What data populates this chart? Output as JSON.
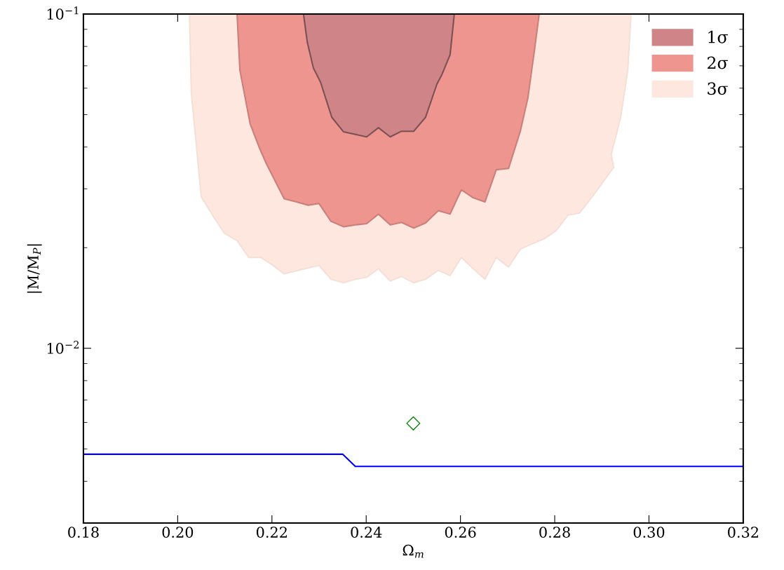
{
  "chart_data": {
    "type": "area",
    "xlabel": "Ω$_{m}$",
    "ylabel": "|M/M$_{P}$|",
    "log": "y",
    "xlim": [
      0.18,
      0.32
    ],
    "xticks": [
      0.18,
      {
        "value": 0.2,
        "label": "0.20"
      },
      0.22,
      0.24,
      0.26,
      0.28,
      {
        "value": 0.3,
        "label": "0.30"
      },
      0.32
    ],
    "ylim": [
      0.003,
      0.1
    ],
    "yticks": [
      {
        "value": 0.01,
        "label": "10$^{−2}$"
      },
      {
        "value": 0.1,
        "label": "10$^{−1}$"
      }
    ],
    "legend": "top right",
    "grid": false,
    "series": [
      {
        "name": "1σ",
        "color": "#cf8588",
        "x": [
          0.2267,
          0.2275,
          0.2288,
          0.2303,
          0.2327,
          0.2352,
          0.2401,
          0.2426,
          0.2451,
          0.2475,
          0.2501,
          0.2526,
          0.255,
          0.256,
          0.2578,
          0.2587
        ],
        "values": [
          0.1,
          0.0824,
          0.0689,
          0.0626,
          0.0491,
          0.0444,
          0.0429,
          0.0457,
          0.0429,
          0.0446,
          0.0446,
          0.0491,
          0.0617,
          0.0656,
          0.0755,
          0.1
        ]
      },
      {
        "name": "2σ",
        "color": "#ef9590",
        "x": [
          0.2126,
          0.2132,
          0.2154,
          0.2173,
          0.2188,
          0.2226,
          0.2252,
          0.2277,
          0.23,
          0.2325,
          0.2352,
          0.2377,
          0.2401,
          0.2426,
          0.2451,
          0.2475,
          0.2501,
          0.2526,
          0.2553,
          0.2578,
          0.2602,
          0.2627,
          0.2652,
          0.2676,
          0.2702,
          0.2727,
          0.2743,
          0.2758,
          0.2767
        ],
        "values": [
          0.1,
          0.0679,
          0.0468,
          0.0399,
          0.0357,
          0.028,
          0.0274,
          0.0268,
          0.0271,
          0.024,
          0.0231,
          0.0234,
          0.0236,
          0.0252,
          0.0234,
          0.0238,
          0.0229,
          0.0237,
          0.0258,
          0.0252,
          0.0298,
          0.0282,
          0.0274,
          0.0342,
          0.0345,
          0.0446,
          0.056,
          0.0797,
          0.1
        ]
      },
      {
        "name": "3σ",
        "color": "#fde7df",
        "x": [
          0.2025,
          0.2029,
          0.205,
          0.2074,
          0.2099,
          0.2126,
          0.2151,
          0.2176,
          0.22,
          0.2226,
          0.23,
          0.2325,
          0.2352,
          0.2377,
          0.2401,
          0.2426,
          0.2451,
          0.2475,
          0.2501,
          0.2526,
          0.2553,
          0.2578,
          0.2602,
          0.2627,
          0.2652,
          0.2676,
          0.2702,
          0.2727,
          0.2754,
          0.2779,
          0.2803,
          0.2828,
          0.2853,
          0.2883,
          0.2905,
          0.2925,
          0.292,
          0.294,
          0.2955,
          0.2962
        ],
        "values": [
          0.1,
          0.0579,
          0.0284,
          0.025,
          0.0221,
          0.021,
          0.0187,
          0.0187,
          0.0178,
          0.0167,
          0.0177,
          0.0161,
          0.0157,
          0.0161,
          0.0163,
          0.0173,
          0.0159,
          0.0164,
          0.0157,
          0.0161,
          0.0171,
          0.0165,
          0.0187,
          0.0173,
          0.0161,
          0.0187,
          0.0175,
          0.0198,
          0.0206,
          0.0213,
          0.0225,
          0.025,
          0.0254,
          0.0288,
          0.0318,
          0.0348,
          0.038,
          0.0491,
          0.0679,
          0.1
        ]
      },
      {
        "type": "line",
        "color": "#0000ff",
        "marker": "none",
        "line_style": "solid",
        "x": [
          0.18,
          0.235,
          0.2377,
          0.32
        ],
        "values": [
          0.00482,
          0.00482,
          0.00443,
          0.00443
        ]
      },
      {
        "type": "scatter",
        "color": "#008000",
        "marker": "diamond",
        "x": [
          0.25
        ],
        "values": [
          0.00596
        ]
      }
    ]
  }
}
